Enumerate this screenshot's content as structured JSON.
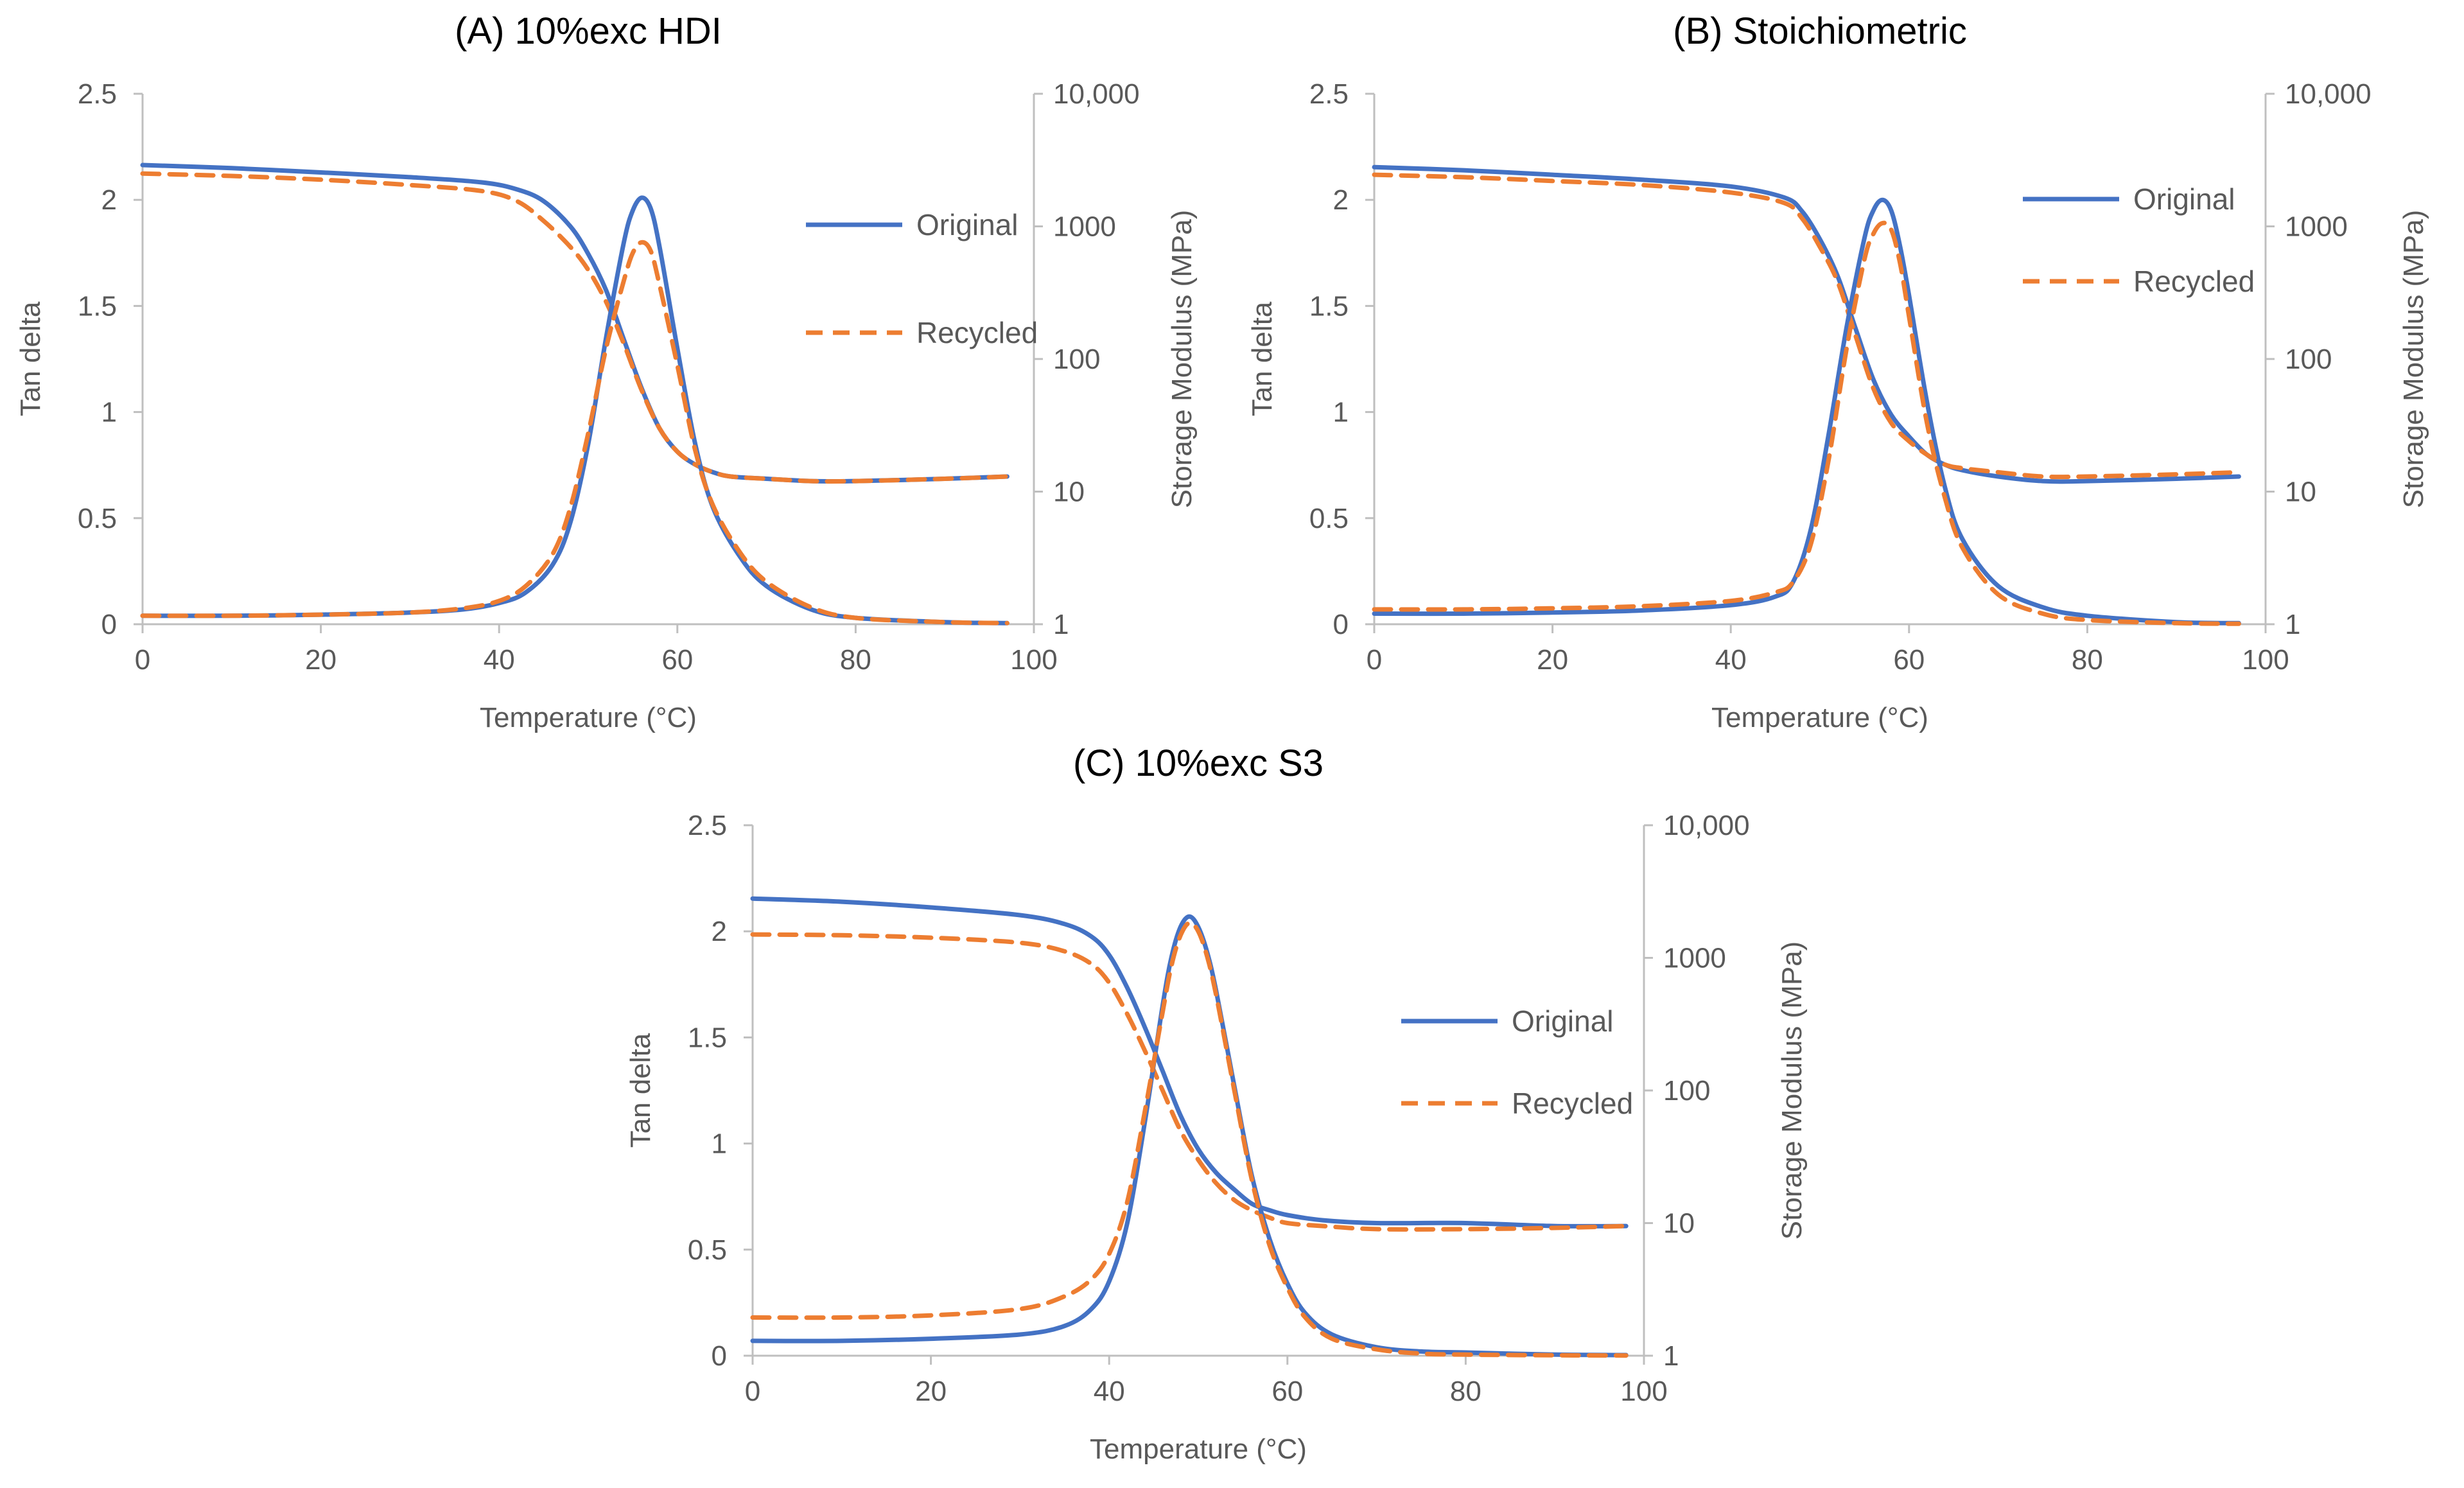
{
  "chart_data": [
    {
      "type": "line",
      "panel_id": "A",
      "title": "(A)  10%exc HDI",
      "xlabel": "Temperature (°C)",
      "ylabel": "Tan delta",
      "y2label": "Storage Modulus (MPa)",
      "xlim": [
        0,
        100
      ],
      "ylim": [
        0,
        2.5
      ],
      "y2lim": [
        1,
        10000
      ],
      "y2scale": "log",
      "x_ticks": [
        "0",
        "20",
        "40",
        "60",
        "80",
        "100"
      ],
      "y_ticks": [
        "0",
        "0.5",
        "1",
        "1.5",
        "2",
        "2.5"
      ],
      "y2_ticks": [
        "1",
        "10",
        "100",
        "1000",
        "10,000"
      ],
      "legend": [
        {
          "name": "Original",
          "color": "#4472c4",
          "dash": "solid"
        },
        {
          "name": "Recycled",
          "color": "#ed7d31",
          "dash": "dashed"
        }
      ],
      "series": [
        {
          "name": "Original",
          "kind": "storage_modulus",
          "axis": "y2",
          "color": "#4472c4",
          "dash": "solid",
          "x": [
            0,
            10,
            20,
            30,
            38,
            42,
            45,
            48,
            50,
            52,
            54,
            56,
            58,
            60,
            62,
            64,
            66,
            70,
            75,
            80,
            90,
            97
          ],
          "y": [
            2900,
            2750,
            2550,
            2350,
            2150,
            1900,
            1550,
            1000,
            620,
            330,
            140,
            60,
            30,
            20,
            16,
            14,
            13,
            12.5,
            12,
            12,
            12.5,
            13
          ]
        },
        {
          "name": "Recycled",
          "kind": "storage_modulus",
          "axis": "y2",
          "color": "#ed7d31",
          "dash": "dashed",
          "x": [
            0,
            10,
            20,
            30,
            38,
            42,
            45,
            48,
            50,
            52,
            54,
            56,
            58,
            60,
            62,
            64,
            66,
            70,
            75,
            80,
            90,
            97
          ],
          "y": [
            2500,
            2400,
            2250,
            2050,
            1850,
            1550,
            1100,
            700,
            470,
            270,
            130,
            58,
            30,
            20,
            16,
            14,
            13,
            12.5,
            12,
            12,
            12.5,
            13
          ]
        },
        {
          "name": "Original",
          "kind": "tan_delta",
          "axis": "y",
          "color": "#4472c4",
          "dash": "solid",
          "x": [
            0,
            10,
            20,
            30,
            36,
            40,
            43,
            46,
            48,
            50,
            52,
            54,
            55,
            56,
            57,
            58,
            60,
            62,
            64,
            67,
            70,
            75,
            80,
            90,
            97
          ],
          "y": [
            0.04,
            0.04,
            0.045,
            0.055,
            0.07,
            0.1,
            0.15,
            0.28,
            0.48,
            0.85,
            1.35,
            1.8,
            1.95,
            2.01,
            1.96,
            1.78,
            1.3,
            0.85,
            0.55,
            0.32,
            0.18,
            0.07,
            0.03,
            0.01,
            0.005
          ]
        },
        {
          "name": "Recycled",
          "kind": "tan_delta",
          "axis": "y",
          "color": "#ed7d31",
          "dash": "dashed",
          "x": [
            0,
            10,
            20,
            30,
            36,
            40,
            43,
            46,
            48,
            50,
            52,
            54,
            55,
            56,
            57,
            58,
            60,
            62,
            64,
            67,
            70,
            75,
            80,
            90,
            97
          ],
          "y": [
            0.04,
            0.04,
            0.045,
            0.055,
            0.075,
            0.11,
            0.18,
            0.33,
            0.55,
            0.9,
            1.3,
            1.62,
            1.75,
            1.8,
            1.76,
            1.6,
            1.22,
            0.82,
            0.56,
            0.34,
            0.2,
            0.08,
            0.03,
            0.01,
            0.005
          ]
        }
      ]
    },
    {
      "type": "line",
      "panel_id": "B",
      "title": "(B)  Stoichiometric",
      "xlabel": "Temperature (°C)",
      "ylabel": "Tan delta",
      "y2label": "Storage Modulus (MPa)",
      "xlim": [
        0,
        100
      ],
      "ylim": [
        0,
        2.5
      ],
      "y2lim": [
        1,
        10000
      ],
      "y2scale": "log",
      "x_ticks": [
        "0",
        "20",
        "40",
        "60",
        "80",
        "100"
      ],
      "y_ticks": [
        "0",
        "0.5",
        "1",
        "1.5",
        "2",
        "2.5"
      ],
      "y2_ticks": [
        "1",
        "10",
        "100",
        "1000",
        "10,000"
      ],
      "legend": [
        {
          "name": "Original",
          "color": "#4472c4",
          "dash": "solid"
        },
        {
          "name": "Recycled",
          "color": "#ed7d31",
          "dash": "dashed"
        }
      ],
      "series": [
        {
          "name": "Original",
          "kind": "storage_modulus",
          "axis": "y2",
          "color": "#4472c4",
          "dash": "solid",
          "x": [
            0,
            10,
            20,
            30,
            40,
            46,
            48,
            50,
            52,
            54,
            56,
            58,
            60,
            62,
            64,
            66,
            70,
            75,
            80,
            90,
            97
          ],
          "y": [
            2800,
            2650,
            2450,
            2250,
            2000,
            1650,
            1300,
            800,
            420,
            170,
            70,
            38,
            26,
            19,
            16,
            14.5,
            13,
            12,
            12,
            12.5,
            13
          ]
        },
        {
          "name": "Recycled",
          "kind": "storage_modulus",
          "axis": "y2",
          "color": "#ed7d31",
          "dash": "dashed",
          "x": [
            0,
            10,
            20,
            30,
            40,
            46,
            48,
            50,
            52,
            54,
            56,
            58,
            60,
            62,
            64,
            66,
            70,
            75,
            80,
            90,
            97
          ],
          "y": [
            2450,
            2350,
            2200,
            2050,
            1800,
            1500,
            1150,
            700,
            380,
            150,
            60,
            33,
            24,
            19,
            16,
            15,
            14,
            13,
            13,
            13.5,
            14
          ]
        },
        {
          "name": "Original",
          "kind": "tan_delta",
          "axis": "y",
          "color": "#4472c4",
          "dash": "solid",
          "x": [
            0,
            10,
            20,
            30,
            40,
            45,
            47,
            49,
            51,
            53,
            55,
            56,
            57,
            58,
            59,
            60,
            62,
            64,
            66,
            70,
            75,
            80,
            90,
            97
          ],
          "y": [
            0.05,
            0.05,
            0.055,
            0.065,
            0.09,
            0.13,
            0.2,
            0.45,
            0.9,
            1.4,
            1.82,
            1.95,
            2.0,
            1.95,
            1.78,
            1.55,
            1.05,
            0.65,
            0.4,
            0.18,
            0.08,
            0.04,
            0.01,
            0.005
          ]
        },
        {
          "name": "Recycled",
          "kind": "tan_delta",
          "axis": "y",
          "color": "#ed7d31",
          "dash": "dashed",
          "x": [
            0,
            10,
            20,
            30,
            40,
            45,
            47,
            49,
            51,
            53,
            55,
            56,
            57,
            58,
            59,
            60,
            62,
            64,
            66,
            70,
            75,
            80,
            90,
            97
          ],
          "y": [
            0.07,
            0.07,
            0.075,
            0.085,
            0.11,
            0.15,
            0.2,
            0.38,
            0.78,
            1.3,
            1.72,
            1.84,
            1.89,
            1.86,
            1.7,
            1.45,
            0.95,
            0.6,
            0.36,
            0.14,
            0.05,
            0.02,
            0.005,
            0.002
          ]
        }
      ]
    },
    {
      "type": "line",
      "panel_id": "C",
      "title": "(C)  10%exc S3",
      "xlabel": "Temperature (°C)",
      "ylabel": "Tan delta",
      "y2label": "Storage Modulus (MPa)",
      "xlim": [
        0,
        100
      ],
      "ylim": [
        0,
        2.5
      ],
      "y2lim": [
        1,
        10000
      ],
      "y2scale": "log",
      "x_ticks": [
        "0",
        "20",
        "40",
        "60",
        "80",
        "100"
      ],
      "y_ticks": [
        "0",
        "0.5",
        "1",
        "1.5",
        "2",
        "2.5"
      ],
      "y2_ticks": [
        "1",
        "10",
        "100",
        "1000",
        "10,000"
      ],
      "legend": [
        {
          "name": "Original",
          "color": "#4472c4",
          "dash": "solid"
        },
        {
          "name": "Recycled",
          "color": "#ed7d31",
          "dash": "dashed"
        }
      ],
      "series": [
        {
          "name": "Original",
          "kind": "storage_modulus",
          "axis": "y2",
          "color": "#4472c4",
          "dash": "solid",
          "x": [
            0,
            10,
            20,
            30,
            35,
            38,
            40,
            42,
            44,
            46,
            48,
            50,
            52,
            54,
            56,
            58,
            60,
            64,
            70,
            80,
            90,
            98
          ],
          "y": [
            2800,
            2650,
            2400,
            2100,
            1800,
            1450,
            1050,
            600,
            300,
            140,
            65,
            36,
            24,
            18,
            14,
            12.5,
            11.5,
            10.5,
            10,
            10,
            9.5,
            9.5
          ]
        },
        {
          "name": "Recycled",
          "kind": "storage_modulus",
          "axis": "y2",
          "color": "#ed7d31",
          "dash": "dashed",
          "x": [
            0,
            10,
            20,
            30,
            35,
            38,
            40,
            42,
            44,
            46,
            48,
            50,
            52,
            54,
            56,
            58,
            60,
            64,
            70,
            80,
            90,
            98
          ],
          "y": [
            1500,
            1480,
            1420,
            1300,
            1120,
            900,
            650,
            380,
            200,
            100,
            50,
            30,
            20,
            15,
            12.5,
            11,
            10,
            9.5,
            9,
            9,
            9.2,
            9.5
          ]
        },
        {
          "name": "Original",
          "kind": "tan_delta",
          "axis": "y",
          "color": "#4472c4",
          "dash": "solid",
          "x": [
            0,
            10,
            20,
            30,
            35,
            38,
            40,
            42,
            44,
            46,
            47,
            48,
            49,
            50,
            51,
            52,
            54,
            56,
            58,
            60,
            62,
            65,
            70,
            75,
            80,
            90,
            98
          ],
          "y": [
            0.07,
            0.07,
            0.08,
            0.1,
            0.14,
            0.22,
            0.35,
            0.62,
            1.1,
            1.65,
            1.88,
            2.02,
            2.07,
            2.02,
            1.9,
            1.72,
            1.28,
            0.85,
            0.55,
            0.34,
            0.2,
            0.1,
            0.04,
            0.02,
            0.015,
            0.005,
            0.003
          ]
        },
        {
          "name": "Recycled",
          "kind": "tan_delta",
          "axis": "y",
          "color": "#ed7d31",
          "dash": "dashed",
          "x": [
            0,
            10,
            20,
            30,
            35,
            38,
            40,
            42,
            44,
            46,
            47,
            48,
            49,
            50,
            51,
            52,
            54,
            56,
            58,
            60,
            62,
            65,
            70,
            75,
            80,
            90,
            98
          ],
          "y": [
            0.18,
            0.18,
            0.19,
            0.22,
            0.28,
            0.36,
            0.48,
            0.72,
            1.15,
            1.62,
            1.84,
            1.98,
            2.04,
            2.0,
            1.88,
            1.7,
            1.26,
            0.83,
            0.52,
            0.32,
            0.18,
            0.08,
            0.03,
            0.01,
            0.005,
            0.002,
            0.001
          ]
        }
      ]
    }
  ]
}
